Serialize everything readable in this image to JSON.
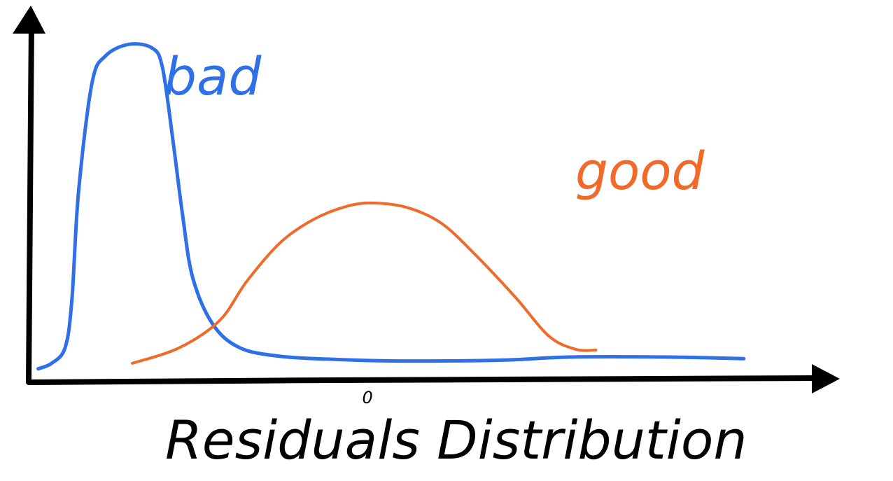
{
  "chart_data": {
    "type": "line",
    "title": "",
    "xlabel": "Residuals Distribution",
    "ylabel": "",
    "x_tick_labels": [
      {
        "x": 0,
        "label": "0"
      }
    ],
    "xlim": [
      -5,
      6.3
    ],
    "ylim": [
      0,
      4.5
    ],
    "grid": false,
    "legend": "none",
    "series": [
      {
        "name": "bad",
        "color": "#2f6fe8",
        "points": [
          [
            -4.9,
            0.03
          ],
          [
            -4.7,
            0.1
          ],
          [
            -4.5,
            0.3
          ],
          [
            -4.4,
            0.9
          ],
          [
            -4.3,
            2.3
          ],
          [
            -4.1,
            3.7
          ],
          [
            -3.9,
            4.05
          ],
          [
            -3.55,
            4.2
          ],
          [
            -3.2,
            4.15
          ],
          [
            -3.05,
            3.9
          ],
          [
            -2.9,
            3.0
          ],
          [
            -2.75,
            2.0
          ],
          [
            -2.6,
            1.2
          ],
          [
            -2.3,
            0.6
          ],
          [
            -1.9,
            0.3
          ],
          [
            -1.3,
            0.19
          ],
          [
            -0.5,
            0.15
          ],
          [
            0.5,
            0.13
          ],
          [
            2.0,
            0.14
          ],
          [
            3.0,
            0.18
          ],
          [
            4.5,
            0.18
          ],
          [
            5.6,
            0.16
          ]
        ]
      },
      {
        "name": "good",
        "color": "#f06a2a",
        "points": [
          [
            -3.5,
            0.1
          ],
          [
            -2.8,
            0.3
          ],
          [
            -2.2,
            0.65
          ],
          [
            -1.8,
            1.15
          ],
          [
            -1.3,
            1.65
          ],
          [
            -0.8,
            1.95
          ],
          [
            -0.3,
            2.12
          ],
          [
            0.1,
            2.16
          ],
          [
            0.6,
            2.1
          ],
          [
            1.1,
            1.9
          ],
          [
            1.6,
            1.5
          ],
          [
            2.2,
            0.95
          ],
          [
            2.7,
            0.45
          ],
          [
            3.1,
            0.28
          ],
          [
            3.4,
            0.27
          ]
        ]
      }
    ]
  }
}
